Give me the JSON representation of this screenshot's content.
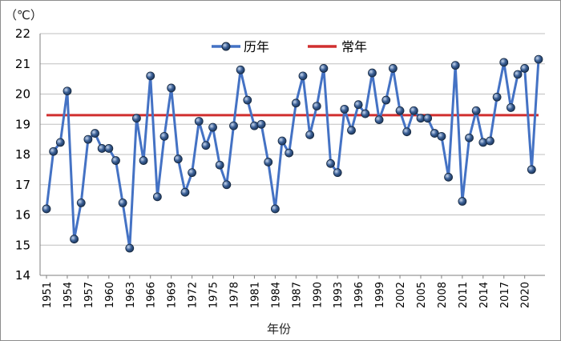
{
  "chart_data": {
    "type": "line",
    "unit_label": "（℃）",
    "xlabel": "年份",
    "ylabel": "",
    "ylim": [
      14,
      22
    ],
    "y_ticks": [
      14,
      15,
      16,
      17,
      18,
      19,
      20,
      21,
      22
    ],
    "x_tick_labels": [
      "1951",
      "1954",
      "1957",
      "1960",
      "1963",
      "1966",
      "1969",
      "1972",
      "1975",
      "1978",
      "1981",
      "1984",
      "1987",
      "1990",
      "1993",
      "1996",
      "1999",
      "2002",
      "2005",
      "2008",
      "2011",
      "2014",
      "2017",
      "2020"
    ],
    "grid": "horizontal",
    "legend_position": "top-right",
    "x": [
      1951,
      1952,
      1953,
      1954,
      1955,
      1956,
      1957,
      1958,
      1959,
      1960,
      1961,
      1962,
      1963,
      1964,
      1965,
      1966,
      1967,
      1968,
      1969,
      1970,
      1971,
      1972,
      1973,
      1974,
      1975,
      1976,
      1977,
      1978,
      1979,
      1980,
      1981,
      1982,
      1983,
      1984,
      1985,
      1986,
      1987,
      1988,
      1989,
      1990,
      1991,
      1992,
      1993,
      1994,
      1995,
      1996,
      1997,
      1998,
      1999,
      2000,
      2001,
      2002,
      2003,
      2004,
      2005,
      2006,
      2007,
      2008,
      2009,
      2010,
      2011,
      2012,
      2013,
      2014,
      2015,
      2016,
      2017,
      2018,
      2019,
      2020,
      2021,
      2022
    ],
    "series": [
      {
        "name": "历年",
        "color": "#4472c4",
        "marker_color": "#1f3a60",
        "values": [
          16.2,
          18.1,
          18.4,
          20.1,
          15.2,
          16.4,
          18.5,
          18.7,
          18.2,
          18.2,
          17.8,
          16.4,
          14.9,
          19.2,
          17.8,
          20.6,
          16.6,
          18.6,
          20.2,
          17.85,
          16.75,
          17.4,
          19.1,
          18.3,
          18.9,
          17.65,
          17.0,
          18.95,
          20.8,
          19.8,
          18.95,
          19.0,
          17.75,
          16.2,
          18.45,
          18.05,
          19.7,
          20.6,
          18.65,
          19.6,
          20.85,
          17.7,
          17.4,
          19.5,
          18.8,
          19.65,
          19.35,
          20.7,
          19.15,
          19.8,
          20.85,
          19.45,
          18.75,
          19.45,
          19.2,
          19.2,
          18.7,
          18.6,
          17.25,
          20.95,
          16.45,
          18.55,
          19.45,
          18.4,
          18.45,
          19.9,
          21.05,
          19.55,
          20.65,
          20.85,
          17.5,
          21.15
        ]
      },
      {
        "name": "常年",
        "color": "#d02f2f",
        "value": 19.3
      }
    ]
  }
}
